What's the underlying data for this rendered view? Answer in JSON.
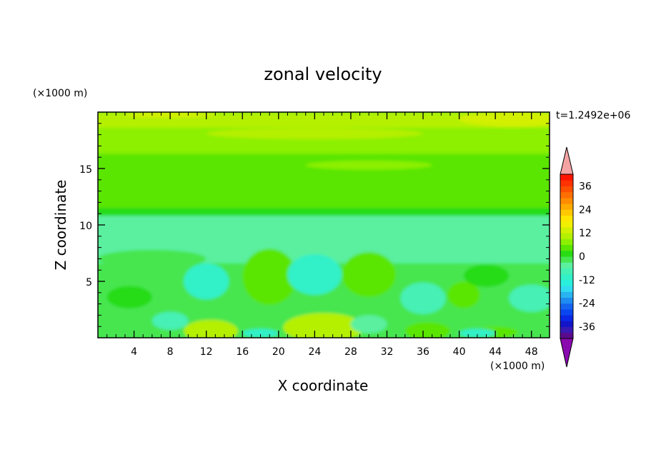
{
  "chart_data": {
    "type": "heatmap",
    "title": "zonal velocity",
    "time_label": "t=1.2492e+06",
    "xlabel": "X coordinate",
    "ylabel": "Z coordinate",
    "x_unit": "(×1000 m)",
    "y_unit": "(×1000 m)",
    "xlim": [
      0,
      50
    ],
    "ylim": [
      0,
      20
    ],
    "x_ticks": [
      4,
      8,
      12,
      16,
      20,
      24,
      28,
      32,
      36,
      40,
      44,
      48
    ],
    "y_ticks": [
      5,
      10,
      15
    ],
    "colorbar": {
      "levels": [
        -42,
        -39,
        -36,
        -33,
        -30,
        -27,
        -24,
        -21,
        -18,
        -15,
        -12,
        -9,
        -6,
        -3,
        0,
        3,
        6,
        9,
        12,
        15,
        18,
        21,
        24,
        27,
        30,
        33,
        36,
        39,
        42
      ],
      "tick_labels": [
        36,
        24,
        12,
        0,
        -12,
        -24,
        -36
      ],
      "extend": "both",
      "over_color": "#f4a3a3",
      "under_color": "#8a0ab0",
      "colors": [
        "#5a0a8c",
        "#3a1ab4",
        "#1414c8",
        "#0a28e6",
        "#0a46f0",
        "#1464f0",
        "#1e8cf0",
        "#28b4f0",
        "#32dcf0",
        "#28f0dc",
        "#32f0c8",
        "#46f0b4",
        "#5af0a0",
        "#46e650",
        "#28dc14",
        "#5ae600",
        "#8cf000",
        "#b4f000",
        "#d2f000",
        "#f0f000",
        "#ffe600",
        "#ffc800",
        "#ffaa00",
        "#ff8c00",
        "#ff6e00",
        "#ff5000",
        "#ff3200",
        "#ff1400"
      ]
    },
    "bands": [
      {
        "z": [
          18.6,
          20
        ],
        "value": 9
      },
      {
        "z": [
          16.3,
          18.6
        ],
        "value": 8
      },
      {
        "z": [
          11.5,
          16.3
        ],
        "value": 5
      },
      {
        "z": [
          10.8,
          11.5
        ],
        "value": 1
      },
      {
        "z": [
          6.6,
          10.8
        ],
        "value": -4
      },
      {
        "z": [
          0,
          6.6
        ],
        "value": -2
      }
    ],
    "features": [
      {
        "x": 46,
        "z": 19.4,
        "rx": 6,
        "rz": 0.7,
        "value": 13
      },
      {
        "x": 8,
        "z": 19.8,
        "rx": 5,
        "rz": 0.3,
        "value": 12
      },
      {
        "x": 30,
        "z": 15.3,
        "rx": 7,
        "rz": 0.4,
        "value": 8
      },
      {
        "x": 24,
        "z": 18.1,
        "rx": 12,
        "rz": 0.5,
        "value": 9
      },
      {
        "x": 18,
        "z": 9.2,
        "rx": 5,
        "rz": 0.5,
        "value": -6
      },
      {
        "x": 30,
        "z": 8.4,
        "rx": 6,
        "rz": 0.5,
        "value": -6
      },
      {
        "x": 6,
        "z": 7.0,
        "rx": 6,
        "rz": 0.8,
        "value": -3
      },
      {
        "x": 19,
        "z": 5.4,
        "rx": 3,
        "rz": 2.5,
        "value": 4
      },
      {
        "x": 30,
        "z": 5.6,
        "rx": 3,
        "rz": 2.0,
        "value": 4
      },
      {
        "x": 40.5,
        "z": 3.8,
        "rx": 1.8,
        "rz": 1.2,
        "value": 3
      },
      {
        "x": 43,
        "z": 5.5,
        "rx": 2.5,
        "rz": 1.0,
        "value": 2
      },
      {
        "x": 3.5,
        "z": 3.6,
        "rx": 2.5,
        "rz": 1.0,
        "value": 1
      },
      {
        "x": 12,
        "z": 5.0,
        "rx": 2.5,
        "rz": 1.6,
        "value": -10
      },
      {
        "x": 24,
        "z": 5.6,
        "rx": 3,
        "rz": 1.8,
        "value": -10
      },
      {
        "x": 36,
        "z": 3.5,
        "rx": 2.5,
        "rz": 1.4,
        "value": -7
      },
      {
        "x": 48,
        "z": 3.5,
        "rx": 2.5,
        "rz": 1.2,
        "value": -8
      },
      {
        "x": 12.5,
        "z": 0.6,
        "rx": 3,
        "rz": 1.0,
        "value": 10
      },
      {
        "x": 25,
        "z": 0.9,
        "rx": 4.5,
        "rz": 1.3,
        "value": 10
      },
      {
        "x": 36.5,
        "z": 0.6,
        "rx": 2.5,
        "rz": 0.8,
        "value": 5
      },
      {
        "x": 44,
        "z": 0.5,
        "rx": 2.5,
        "rz": 0.5,
        "value": 3
      },
      {
        "x": 18,
        "z": 0.4,
        "rx": 2,
        "rz": 0.4,
        "value": -12
      },
      {
        "x": 42,
        "z": 0.4,
        "rx": 2,
        "rz": 0.4,
        "value": -12
      },
      {
        "x": 8,
        "z": 1.5,
        "rx": 2,
        "rz": 0.8,
        "value": -7
      },
      {
        "x": 30,
        "z": 1.2,
        "rx": 2,
        "rz": 0.8,
        "value": -6
      }
    ]
  }
}
